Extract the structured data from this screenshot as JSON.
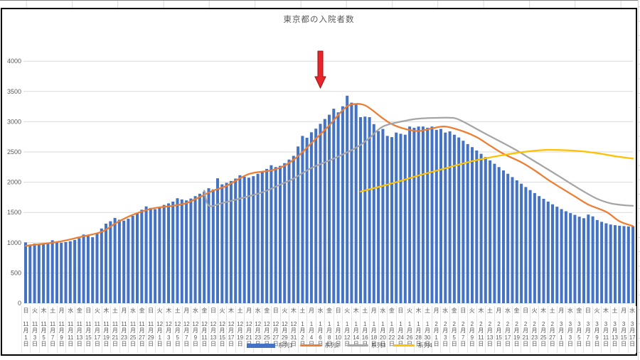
{
  "title": "東京都の入院者数",
  "legend": {
    "items": [
      {
        "label": "系列1",
        "marker": "bar",
        "color": "#4472C4"
      },
      {
        "label": "系列2",
        "marker": "line",
        "color": "#ED7D31"
      },
      {
        "label": "系列3",
        "marker": "line",
        "color": "#A5A5A5"
      },
      {
        "label": "系列4",
        "marker": "line",
        "color": "#FFC000"
      }
    ]
  },
  "colors": {
    "gridline": "#d9d9d9",
    "axis_text": "#595959",
    "chart_border": "#000000",
    "arrow_fill": "#e8252a",
    "arrow_edge": "#9c0f0f"
  },
  "chart_data": {
    "type": "combo-bar-line",
    "title": "東京都の入院者数",
    "y_axis": {
      "min": 0,
      "max": 4000,
      "tick_interval": 500,
      "ticks": [
        0,
        500,
        1000,
        1500,
        2000,
        2500,
        3000,
        3500,
        4000
      ]
    },
    "x_axis": {
      "label_every_days": 2,
      "month_suffix": "月",
      "day_suffix": "日",
      "labels": [
        [
          "日",
          11,
          1
        ],
        [
          "火",
          11,
          3
        ],
        [
          "木",
          11,
          5
        ],
        [
          "土",
          11,
          7
        ],
        [
          "月",
          11,
          9
        ],
        [
          "水",
          11,
          11
        ],
        [
          "金",
          11,
          13
        ],
        [
          "日",
          11,
          15
        ],
        [
          "火",
          11,
          17
        ],
        [
          "木",
          11,
          19
        ],
        [
          "土",
          11,
          21
        ],
        [
          "月",
          11,
          23
        ],
        [
          "水",
          11,
          25
        ],
        [
          "金",
          11,
          27
        ],
        [
          "日",
          11,
          29
        ],
        [
          "火",
          12,
          1
        ],
        [
          "木",
          12,
          3
        ],
        [
          "土",
          12,
          5
        ],
        [
          "月",
          12,
          7
        ],
        [
          "水",
          12,
          9
        ],
        [
          "金",
          12,
          11
        ],
        [
          "日",
          12,
          13
        ],
        [
          "火",
          12,
          15
        ],
        [
          "木",
          12,
          17
        ],
        [
          "土",
          12,
          19
        ],
        [
          "月",
          12,
          21
        ],
        [
          "水",
          12,
          23
        ],
        [
          "金",
          12,
          25
        ],
        [
          "日",
          12,
          27
        ],
        [
          "火",
          12,
          29
        ],
        [
          "木",
          12,
          31
        ],
        [
          "土",
          1,
          2
        ],
        [
          "月",
          1,
          4
        ],
        [
          "水",
          1,
          6
        ],
        [
          "金",
          1,
          8
        ],
        [
          "日",
          1,
          10
        ],
        [
          "火",
          1,
          12
        ],
        [
          "木",
          1,
          14
        ],
        [
          "土",
          1,
          16
        ],
        [
          "月",
          1,
          18
        ],
        [
          "水",
          1,
          20
        ],
        [
          "金",
          1,
          22
        ],
        [
          "日",
          1,
          24
        ],
        [
          "火",
          1,
          26
        ],
        [
          "木",
          1,
          28
        ],
        [
          "土",
          1,
          30
        ],
        [
          "月",
          2,
          1
        ],
        [
          "水",
          2,
          3
        ],
        [
          "金",
          2,
          5
        ],
        [
          "日",
          2,
          7
        ],
        [
          "火",
          2,
          9
        ],
        [
          "木",
          2,
          11
        ],
        [
          "土",
          2,
          13
        ],
        [
          "月",
          2,
          15
        ],
        [
          "水",
          2,
          17
        ],
        [
          "金",
          2,
          19
        ],
        [
          "日",
          2,
          21
        ],
        [
          "火",
          2,
          23
        ],
        [
          "木",
          2,
          25
        ],
        [
          "土",
          2,
          27
        ],
        [
          "月",
          3,
          1
        ],
        [
          "水",
          3,
          3
        ],
        [
          "金",
          3,
          5
        ],
        [
          "日",
          3,
          7
        ],
        [
          "火",
          3,
          9
        ],
        [
          "木",
          3,
          11
        ],
        [
          "土",
          3,
          13
        ],
        [
          "月",
          3,
          15
        ],
        [
          "水",
          3,
          17
        ]
      ]
    },
    "series": [
      {
        "name": "系列1",
        "type": "bar",
        "color": "#4472C4",
        "values": [
          1005,
          970,
          985,
          970,
          990,
          985,
          1040,
          1020,
          1000,
          1010,
          1025,
          1045,
          1075,
          1135,
          1110,
          1090,
          1160,
          1235,
          1315,
          1355,
          1410,
          1380,
          1365,
          1395,
          1445,
          1495,
          1545,
          1600,
          1575,
          1555,
          1590,
          1625,
          1650,
          1680,
          1735,
          1715,
          1700,
          1730,
          1770,
          1810,
          1845,
          1900,
          1880,
          2065,
          1965,
          1990,
          2020,
          2060,
          2115,
          2090,
          2075,
          2100,
          2140,
          2180,
          2220,
          2280,
          2250,
          2270,
          2315,
          2375,
          2435,
          2590,
          2765,
          2735,
          2825,
          2885,
          2965,
          3045,
          3115,
          3215,
          3155,
          3255,
          3430,
          3315,
          3295,
          3075,
          3085,
          3075,
          2960,
          2845,
          2880,
          2765,
          2745,
          2820,
          2800,
          2785,
          2920,
          2900,
          2920,
          2920,
          2900,
          2920,
          2865,
          2880,
          2820,
          2840,
          2785,
          2740,
          2685,
          2630,
          2580,
          2525,
          2470,
          2415,
          2360,
          2305,
          2250,
          2195,
          2140,
          2085,
          2030,
          1975,
          1920,
          1870,
          1820,
          1770,
          1725,
          1680,
          1635,
          1595,
          1555,
          1520,
          1490,
          1460,
          1430,
          1405,
          1465,
          1435,
          1375,
          1345,
          1320,
          1300,
          1290,
          1280,
          1275,
          1268,
          1270
        ]
      },
      {
        "name": "系列2",
        "type": "line",
        "color": "#ED7D31",
        "points": [
          [
            0,
            950
          ],
          [
            7,
            1010
          ],
          [
            12,
            1090
          ],
          [
            17,
            1180
          ],
          [
            20,
            1315
          ],
          [
            23,
            1430
          ],
          [
            26,
            1515
          ],
          [
            29,
            1575
          ],
          [
            33,
            1610
          ],
          [
            36,
            1655
          ],
          [
            39,
            1755
          ],
          [
            42,
            1860
          ],
          [
            45,
            1940
          ],
          [
            50,
            2135
          ],
          [
            55,
            2195
          ],
          [
            58,
            2275
          ],
          [
            61,
            2430
          ],
          [
            64,
            2645
          ],
          [
            68,
            2940
          ],
          [
            71,
            3190
          ],
          [
            73,
            3285
          ],
          [
            76,
            3270
          ],
          [
            80,
            3055
          ],
          [
            82,
            2960
          ],
          [
            85,
            2880
          ],
          [
            88,
            2845
          ],
          [
            91,
            2890
          ],
          [
            94,
            2920
          ],
          [
            98,
            2840
          ],
          [
            101,
            2745
          ],
          [
            104,
            2605
          ],
          [
            107,
            2470
          ],
          [
            111,
            2330
          ],
          [
            114,
            2195
          ],
          [
            117,
            2040
          ],
          [
            120,
            1900
          ],
          [
            123,
            1765
          ],
          [
            126,
            1630
          ],
          [
            130,
            1510
          ],
          [
            133,
            1355
          ],
          [
            136,
            1275
          ]
        ]
      },
      {
        "name": "系列3",
        "type": "line",
        "color": "#A5A5A5",
        "points": [
          [
            40,
            1860
          ],
          [
            41,
            1615
          ],
          [
            44,
            1655
          ],
          [
            48,
            1730
          ],
          [
            52,
            1810
          ],
          [
            54,
            1860
          ],
          [
            57,
            1960
          ],
          [
            60,
            2060
          ],
          [
            64,
            2235
          ],
          [
            69,
            2390
          ],
          [
            74,
            2570
          ],
          [
            77,
            2730
          ],
          [
            80,
            2920
          ],
          [
            85,
            3015
          ],
          [
            88,
            3050
          ],
          [
            93,
            3065
          ],
          [
            96,
            3060
          ],
          [
            98,
            3000
          ],
          [
            101,
            2880
          ],
          [
            104,
            2760
          ],
          [
            107,
            2645
          ],
          [
            110,
            2525
          ],
          [
            113,
            2390
          ],
          [
            116,
            2255
          ],
          [
            119,
            2120
          ],
          [
            122,
            1980
          ],
          [
            125,
            1845
          ],
          [
            128,
            1725
          ],
          [
            131,
            1650
          ],
          [
            134,
            1620
          ],
          [
            136,
            1610
          ]
        ]
      },
      {
        "name": "系列4",
        "type": "line",
        "color": "#FFC000",
        "points": [
          [
            75,
            1845
          ],
          [
            79,
            1920
          ],
          [
            83,
            2000
          ],
          [
            87,
            2090
          ],
          [
            91,
            2170
          ],
          [
            95,
            2250
          ],
          [
            99,
            2330
          ],
          [
            103,
            2395
          ],
          [
            107,
            2450
          ],
          [
            111,
            2495
          ],
          [
            114,
            2520
          ],
          [
            117,
            2535
          ],
          [
            120,
            2530
          ],
          [
            124,
            2515
          ],
          [
            128,
            2480
          ],
          [
            132,
            2430
          ],
          [
            136,
            2390
          ]
        ]
      }
    ],
    "annotation": {
      "shape": "down-arrow",
      "color": "#e8252a",
      "at_day_index": 66
    }
  }
}
